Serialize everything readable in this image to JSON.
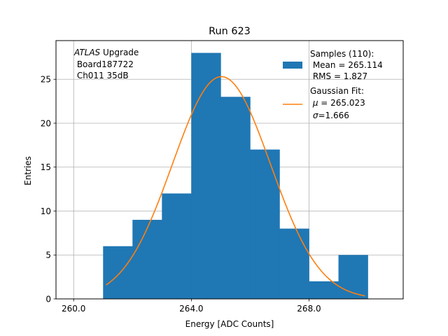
{
  "chart_data": {
    "type": "bar",
    "title": "Run 623",
    "xlabel": "Energy [ADC Counts]",
    "ylabel": "Entries",
    "xlim": [
      259.4,
      271.2
    ],
    "ylim": [
      0,
      29.4
    ],
    "xticks": [
      260.0,
      264.0,
      268.0
    ],
    "xtick_labels": [
      "260.0",
      "264.0",
      "268.0"
    ],
    "yticks": [
      0,
      5,
      10,
      15,
      20,
      25
    ],
    "ytick_labels": [
      "0",
      "5",
      "10",
      "15",
      "20",
      "25"
    ],
    "grid": true,
    "bins": {
      "edges": [
        261.0,
        262.0,
        263.0,
        264.0,
        265.0,
        266.0,
        267.0,
        268.0,
        269.0,
        270.0
      ],
      "counts": [
        6,
        9,
        12,
        28,
        23,
        17,
        8,
        2,
        5
      ]
    },
    "fit": {
      "name": "Gaussian Fit",
      "mu": 265.023,
      "sigma": 1.666,
      "amplitude": 25.3,
      "x_range": [
        261.1,
        269.9
      ]
    },
    "annotation": {
      "italic": "ATLAS",
      "rest": " Upgrade",
      "line2": " Board187722",
      "line3": " Ch011 35dB"
    },
    "legend": {
      "position": "top-right",
      "hist_lines": [
        "Samples (110):",
        " Mean = 265.114",
        " RMS = 1.827"
      ],
      "fit_line1": "Gaussian Fit:",
      "fit_mu_symbol": "μ",
      "fit_mu_value": " = 265.023",
      "fit_sigma_symbol": "σ",
      "fit_sigma_value": "=1.666"
    },
    "colors": {
      "hist": "#1f77b4",
      "fit": "#ff7f0e",
      "grid": "#b0b0b0"
    }
  }
}
